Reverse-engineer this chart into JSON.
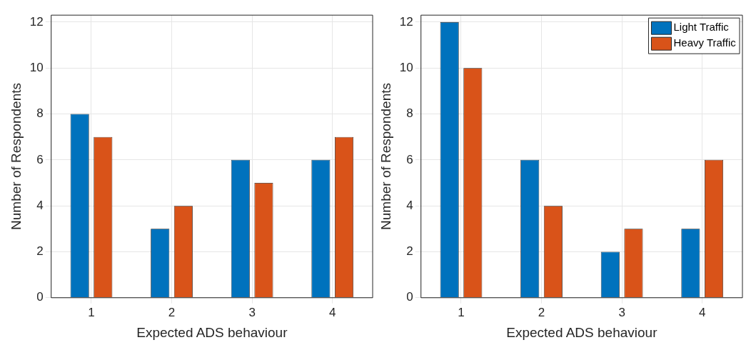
{
  "chart_data": [
    {
      "type": "bar",
      "xlabel": "Expected ADS behaviour",
      "ylabel": "Number of Respondents",
      "categories": [
        "1",
        "2",
        "3",
        "4"
      ],
      "series": [
        {
          "color": "#0072bd",
          "values": [
            8,
            3,
            6,
            6
          ]
        },
        {
          "color": "#d95319",
          "values": [
            7,
            4,
            5,
            7
          ]
        }
      ],
      "ylim": [
        0,
        12.3
      ],
      "yticks": [
        0,
        2,
        4,
        6,
        8,
        10,
        12
      ],
      "grid": true,
      "legend": false
    },
    {
      "type": "bar",
      "xlabel": "Expected ADS behaviour",
      "ylabel": "Number of Respondents",
      "categories": [
        "1",
        "2",
        "3",
        "4"
      ],
      "series": [
        {
          "name": "Light Traffic",
          "color": "#0072bd",
          "values": [
            12,
            6,
            2,
            3
          ]
        },
        {
          "name": "Heavy Traffic",
          "color": "#d95319",
          "values": [
            10,
            4,
            3,
            6
          ]
        }
      ],
      "ylim": [
        0,
        12.3
      ],
      "yticks": [
        0,
        2,
        4,
        6,
        8,
        10,
        12
      ],
      "grid": true,
      "legend": "top right"
    }
  ]
}
